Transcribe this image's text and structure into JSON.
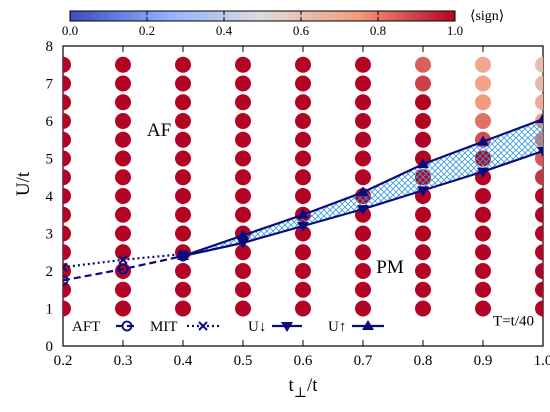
{
  "chart_data": {
    "type": "scatter",
    "xlabel": "t",
    "xlabel_sub": "⊥",
    "xlabel_suffix": "/t",
    "ylabel": "U/t",
    "xlim": [
      0.2,
      1.0
    ],
    "ylim": [
      0,
      8
    ],
    "x_ticks": [
      "0.2",
      "0.3",
      "0.4",
      "0.5",
      "0.6",
      "0.7",
      "0.8",
      "0.9",
      "1.0"
    ],
    "y_ticks": [
      "0",
      "1",
      "2",
      "3",
      "4",
      "5",
      "6",
      "7",
      "8"
    ],
    "colorbar": {
      "label": "⟨sign⟩",
      "range": [
        0,
        1
      ],
      "ticks": [
        "0.0",
        "0.2",
        "0.4",
        "0.6",
        "0.8",
        "1.0"
      ],
      "colors": [
        "#3b4cc0",
        "#8db0fe",
        "#dddcdc",
        "#f49a7b",
        "#b40426"
      ]
    },
    "grid_x": [
      0.2,
      0.3,
      0.4,
      0.5,
      0.6,
      0.7,
      0.8,
      0.9,
      1.0
    ],
    "grid_u_start": 1.0,
    "grid_u_end": 7.5,
    "grid_u_step": 0.5,
    "sign_overrides": [
      {
        "x": 0.8,
        "u": 7.5,
        "sign": 0.85
      },
      {
        "x": 0.8,
        "u": 7.0,
        "sign": 0.9
      },
      {
        "x": 0.9,
        "u": 7.5,
        "sign": 0.7
      },
      {
        "x": 0.9,
        "u": 7.0,
        "sign": 0.72
      },
      {
        "x": 0.9,
        "u": 6.5,
        "sign": 0.75
      },
      {
        "x": 0.9,
        "u": 6.0,
        "sign": 0.82
      },
      {
        "x": 0.9,
        "u": 5.5,
        "sign": 0.88
      },
      {
        "x": 1.0,
        "u": 7.5,
        "sign": 0.62
      },
      {
        "x": 1.0,
        "u": 7.0,
        "sign": 0.64
      },
      {
        "x": 1.0,
        "u": 6.5,
        "sign": 0.68
      },
      {
        "x": 1.0,
        "u": 6.0,
        "sign": 0.74
      },
      {
        "x": 1.0,
        "u": 5.5,
        "sign": 0.8
      },
      {
        "x": 1.0,
        "u": 5.0,
        "sign": 0.86
      },
      {
        "x": 1.0,
        "u": 4.5,
        "sign": 0.92
      }
    ],
    "series": [
      {
        "name": "AFT",
        "marker": "circle",
        "style": "dashed",
        "x": [
          0.2,
          0.3,
          0.4
        ],
        "y": [
          1.75,
          2.05,
          2.4
        ]
      },
      {
        "name": "MIT",
        "marker": "cross",
        "style": "dotted",
        "x": [
          0.2,
          0.3,
          0.4
        ],
        "y": [
          2.1,
          2.3,
          2.45
        ]
      },
      {
        "name": "U↓",
        "marker": "triangle-down",
        "style": "solid",
        "x": [
          0.4,
          0.5,
          0.6,
          0.7,
          0.8,
          0.9,
          1.0
        ],
        "y": [
          2.4,
          2.75,
          3.2,
          3.65,
          4.15,
          4.65,
          5.2
        ]
      },
      {
        "name": "U↑",
        "marker": "triangle-up",
        "style": "solid",
        "x": [
          0.4,
          0.5,
          0.6,
          0.7,
          0.8,
          0.9,
          1.0
        ],
        "y": [
          2.4,
          2.95,
          3.5,
          4.1,
          4.85,
          5.45,
          6.05
        ]
      }
    ],
    "series_color": "#0a0a80",
    "hatch_color": "#3a9ad9",
    "annotations": [
      {
        "text": "AF",
        "x": 0.36,
        "y": 5.6
      },
      {
        "text": "PM",
        "x": 0.745,
        "y": 1.95
      },
      {
        "text": "T=t/40",
        "x": 0.985,
        "y": 0.55
      }
    ]
  }
}
